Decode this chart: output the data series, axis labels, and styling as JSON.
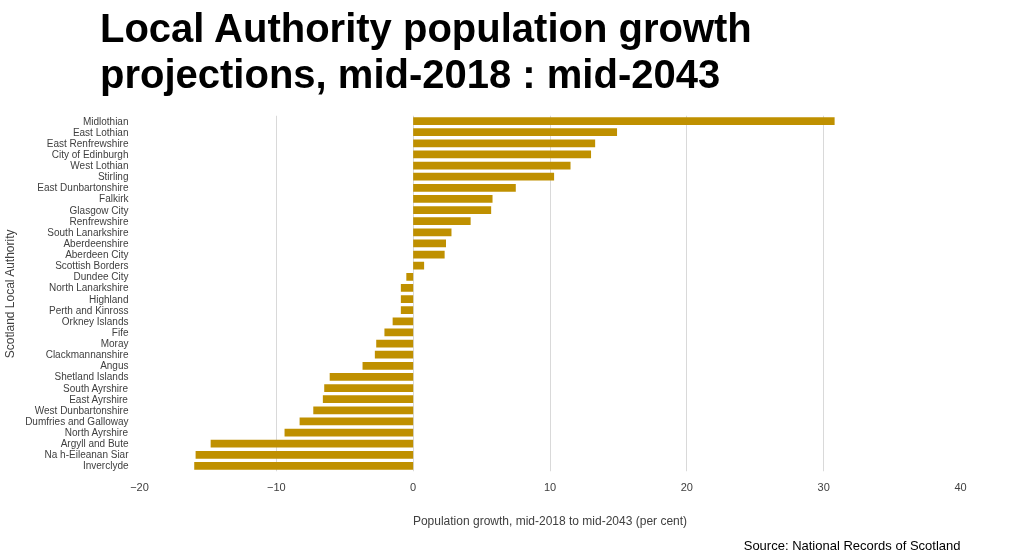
{
  "chart_data": {
    "type": "bar",
    "orientation": "horizontal",
    "title": "Local Authority population growth projections, mid-2018 : mid-2043",
    "xlabel": "Population growth, mid-2018 to mid-2043 (per cent)",
    "ylabel": "Scotland Local Authority",
    "categories": [
      "Midlothian",
      "East Lothian",
      "East Renfrewshire",
      "City of Edinburgh",
      "West Lothian",
      "Stirling",
      "East Dunbartonshire",
      "Falkirk",
      "Glasgow City",
      "Renfrewshire",
      "South Lanarkshire",
      "Aberdeenshire",
      "Aberdeen City",
      "Scottish Borders",
      "Dundee City",
      "North Lanarkshire",
      "Highland",
      "Perth and Kinross",
      "Orkney Islands",
      "Fife",
      "Moray",
      "Clackmannanshire",
      "Angus",
      "Shetland Islands",
      "South Ayrshire",
      "East Ayrshire",
      "West Dunbartonshire",
      "Dumfries and Galloway",
      "North Ayrshire",
      "Argyll and Bute",
      "Na h-Eileanan Siar",
      "Inverclyde"
    ],
    "values": [
      30.8,
      14.9,
      13.3,
      13.0,
      11.5,
      10.3,
      7.5,
      5.8,
      5.7,
      4.2,
      2.8,
      2.4,
      2.3,
      0.8,
      -0.5,
      -0.9,
      -0.9,
      -0.9,
      -1.5,
      -2.1,
      -2.7,
      -2.8,
      -3.7,
      -6.1,
      -6.5,
      -6.6,
      -7.3,
      -8.3,
      -9.4,
      -14.8,
      -15.9,
      -16.0
    ],
    "color": "#bf9000",
    "xlim": [
      -20,
      40
    ],
    "xticks": [
      -20,
      -10,
      0,
      10,
      20,
      30,
      40
    ],
    "grid": "x",
    "annotations": [
      "Source: National Records of Scotland"
    ]
  }
}
